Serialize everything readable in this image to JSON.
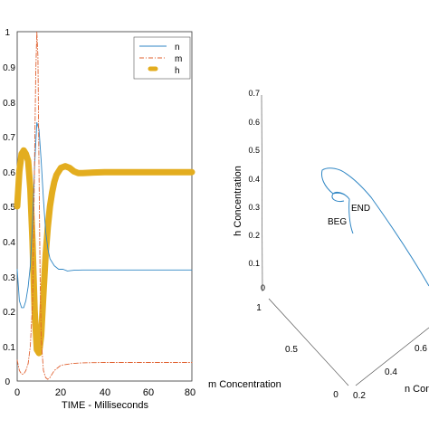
{
  "colors": {
    "n": "#2f86c4",
    "m": "#e0602f",
    "h": "#e3ad1f",
    "axes": "#333333",
    "phase": "#2f86c4"
  },
  "chart_data": [
    {
      "type": "line",
      "xlabel": "TIME - Milliseconds",
      "ylabel": "",
      "xlim": [
        0,
        80
      ],
      "ylim": [
        0,
        1
      ],
      "xticks": [
        0,
        20,
        40,
        60,
        80
      ],
      "yticks": [
        0,
        0.1,
        0.2,
        0.3,
        0.4,
        0.5,
        0.6,
        0.7,
        0.8,
        0.9,
        1
      ],
      "ytick_labels": [
        "0",
        "0.1",
        "0.2",
        "0.3",
        "0.4",
        "0.5",
        "0.6",
        "0.7",
        "0.8",
        "0.9",
        "1"
      ],
      "grid": false,
      "legend_position": "top-right",
      "series": [
        {
          "name": "n",
          "style": "solid",
          "x": [
            0,
            1,
            2,
            3,
            4,
            5,
            6,
            7,
            8,
            9,
            10,
            11,
            12,
            13,
            14,
            15,
            17,
            19,
            21,
            23,
            26,
            30,
            35,
            40,
            50,
            60,
            70,
            80
          ],
          "y": [
            0.32,
            0.23,
            0.21,
            0.21,
            0.23,
            0.27,
            0.33,
            0.45,
            0.62,
            0.74,
            0.72,
            0.63,
            0.52,
            0.43,
            0.38,
            0.35,
            0.33,
            0.32,
            0.32,
            0.315,
            0.317,
            0.318,
            0.318,
            0.318,
            0.318,
            0.318,
            0.318,
            0.318
          ]
        },
        {
          "name": "m",
          "style": "dashdot",
          "x": [
            0,
            1,
            2,
            3,
            4,
            5,
            6,
            7,
            7.5,
            8,
            8.5,
            9,
            9.5,
            10,
            10.5,
            11,
            12,
            13,
            14,
            15,
            17,
            20,
            25,
            30,
            40,
            50,
            60,
            70,
            80
          ],
          "y": [
            0.06,
            0.03,
            0.02,
            0.02,
            0.03,
            0.05,
            0.1,
            0.22,
            0.4,
            0.65,
            0.88,
            1.0,
            0.93,
            0.6,
            0.3,
            0.12,
            0.03,
            0.01,
            0.005,
            0.01,
            0.03,
            0.045,
            0.05,
            0.052,
            0.053,
            0.053,
            0.053,
            0.053,
            0.053
          ]
        },
        {
          "name": "h",
          "style": "thick",
          "x": [
            0,
            1,
            2,
            3,
            4,
            5,
            6,
            7,
            8,
            9,
            10,
            11,
            12,
            13,
            14,
            15,
            16,
            17,
            18,
            19,
            20,
            22,
            24,
            26,
            28,
            30,
            35,
            40,
            50,
            60,
            70,
            80
          ],
          "y": [
            0.5,
            0.6,
            0.65,
            0.66,
            0.65,
            0.63,
            0.55,
            0.4,
            0.2,
            0.09,
            0.08,
            0.13,
            0.25,
            0.36,
            0.44,
            0.5,
            0.54,
            0.57,
            0.59,
            0.6,
            0.61,
            0.615,
            0.61,
            0.6,
            0.595,
            0.595,
            0.597,
            0.598,
            0.598,
            0.598,
            0.598,
            0.598
          ]
        }
      ]
    },
    {
      "type": "line",
      "projection": "3d",
      "xlabel": "m Concentration",
      "ylabel": "n Concentration",
      "zlabel": "h Concentration",
      "grid": false,
      "m_ticks": [
        "0",
        "0.5",
        "1"
      ],
      "n_ticks": [
        "0.2",
        "0.4",
        "0.6"
      ],
      "h_ticks": [
        "0",
        "0.1",
        "0.2",
        "0.3",
        "0.4",
        "0.5",
        "0.6",
        "0.7"
      ],
      "annotations": [
        {
          "text": "BEG"
        },
        {
          "text": "END"
        }
      ]
    }
  ]
}
